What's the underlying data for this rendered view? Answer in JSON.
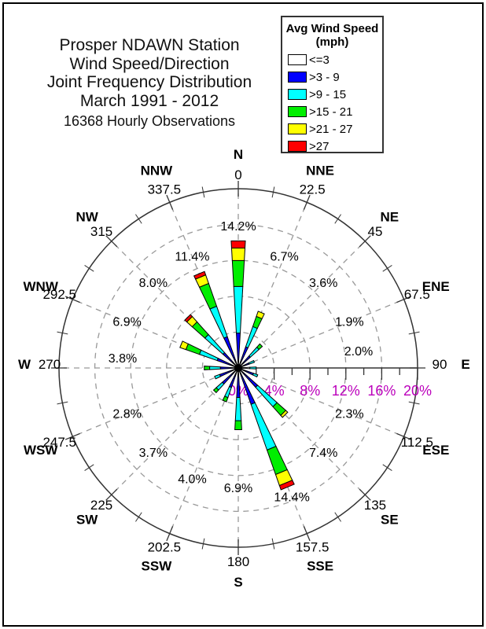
{
  "title": {
    "lines": [
      "Prosper NDAWN Station",
      "Wind Speed/Direction",
      "Joint Frequency Distribution",
      "March 1991 - 2012"
    ],
    "subtitle": "16368 Hourly Observations"
  },
  "legend": {
    "title_line1": "Avg Wind Speed",
    "title_line2": "(mph)",
    "items": [
      {
        "label": "<=3",
        "color": "#FFFFFF"
      },
      {
        "label": ">3 - 9",
        "color": "#0000FF"
      },
      {
        "label": ">9 - 15",
        "color": "#00FFFF"
      },
      {
        "label": ">15 - 21",
        "color": "#00EE00"
      },
      {
        "label": ">21 - 27",
        "color": "#FFFF00"
      },
      {
        "label": ">27",
        "color": "#FF0000"
      }
    ]
  },
  "chart_data": {
    "type": "wind-rose",
    "units": "percent of observations",
    "speed_bins_mph": [
      "<=3",
      ">3 - 9",
      ">9 - 15",
      ">15 - 21",
      ">21 - 27",
      ">27"
    ],
    "bin_colors": [
      "#FFFFFF",
      "#0000FF",
      "#00FFFF",
      "#00EE00",
      "#FFFF00",
      "#FF0000"
    ],
    "outer_ring_pct": 20,
    "ring_interval_pct": 4,
    "minor_tick_pct": 2,
    "radial_axis_labels": [
      "0%",
      "4%",
      "8%",
      "12%",
      "16%",
      "20%"
    ],
    "radial_axis_ticks_pct": [
      0,
      4,
      8,
      12,
      16,
      20
    ],
    "scale_label_color": "#BB00BB",
    "grid_color": "#999999",
    "axis_color": "#333333",
    "directions": [
      {
        "name": "N",
        "degree": "0",
        "total_label": "14.2%",
        "total_pct": 14.2,
        "segments_pct": [
          0,
          3.9,
          5.2,
          2.9,
          1.4,
          0.8
        ]
      },
      {
        "name": "NNE",
        "degree": "22.5",
        "total_label": "6.7%",
        "total_pct": 6.7,
        "segments_pct": [
          0,
          2.5,
          2.4,
          1.2,
          0.6,
          0
        ]
      },
      {
        "name": "NE",
        "degree": "45",
        "total_label": "3.6%",
        "total_pct": 3.6,
        "segments_pct": [
          0,
          1.8,
          1.3,
          0.5,
          0,
          0
        ]
      },
      {
        "name": "ENE",
        "degree": "67.5",
        "total_label": "1.9%",
        "total_pct": 1.9,
        "segments_pct": [
          0,
          1.3,
          0.6,
          0,
          0,
          0
        ]
      },
      {
        "name": "E",
        "degree": "90",
        "total_label": "2.0%",
        "total_pct": 2.0,
        "segments_pct": [
          1.3,
          0,
          0.7,
          0,
          0,
          0
        ]
      },
      {
        "name": "ESE",
        "degree": "112.5",
        "total_label": "2.3%",
        "total_pct": 2.3,
        "segments_pct": [
          0,
          1.8,
          0.5,
          0,
          0,
          0
        ]
      },
      {
        "name": "SE",
        "degree": "135",
        "total_label": "7.4%",
        "total_pct": 7.4,
        "segments_pct": [
          0,
          2.9,
          2.9,
          1.3,
          0.3,
          0
        ]
      },
      {
        "name": "SSE",
        "degree": "157.5",
        "total_label": "14.4%",
        "total_pct": 14.4,
        "segments_pct": [
          0,
          4.3,
          5.4,
          2.9,
          1.3,
          0.5
        ]
      },
      {
        "name": "S",
        "degree": "180",
        "total_label": "6.9%",
        "total_pct": 6.9,
        "segments_pct": [
          0,
          3.3,
          2.6,
          1.0,
          0,
          0
        ]
      },
      {
        "name": "SSW",
        "degree": "202.5",
        "total_label": "4.0%",
        "total_pct": 4.0,
        "segments_pct": [
          0,
          2.3,
          1.2,
          0.5,
          0,
          0
        ]
      },
      {
        "name": "SW",
        "degree": "225",
        "total_label": "3.7%",
        "total_pct": 3.7,
        "segments_pct": [
          0,
          2.4,
          0.9,
          0.4,
          0,
          0
        ]
      },
      {
        "name": "WSW",
        "degree": "247.5",
        "total_label": "2.8%",
        "total_pct": 2.8,
        "segments_pct": [
          0,
          2.2,
          0.6,
          0,
          0,
          0
        ]
      },
      {
        "name": "W",
        "degree": "270",
        "total_label": "3.8%",
        "total_pct": 3.8,
        "segments_pct": [
          0,
          2.0,
          1.2,
          0.6,
          0,
          0
        ]
      },
      {
        "name": "WNW",
        "degree": "292.5",
        "total_label": "6.9%",
        "total_pct": 6.9,
        "segments_pct": [
          0,
          2.5,
          2.1,
          1.6,
          0.7,
          0
        ]
      },
      {
        "name": "NW",
        "degree": "315",
        "total_label": "8.0%",
        "total_pct": 8.0,
        "segments_pct": [
          0,
          2.3,
          2.7,
          1.9,
          0.8,
          0.3
        ]
      },
      {
        "name": "NNW",
        "degree": "337.5",
        "total_label": "11.4%",
        "total_pct": 11.4,
        "segments_pct": [
          0,
          3.7,
          3.6,
          2.7,
          1.0,
          0.4
        ]
      }
    ]
  }
}
